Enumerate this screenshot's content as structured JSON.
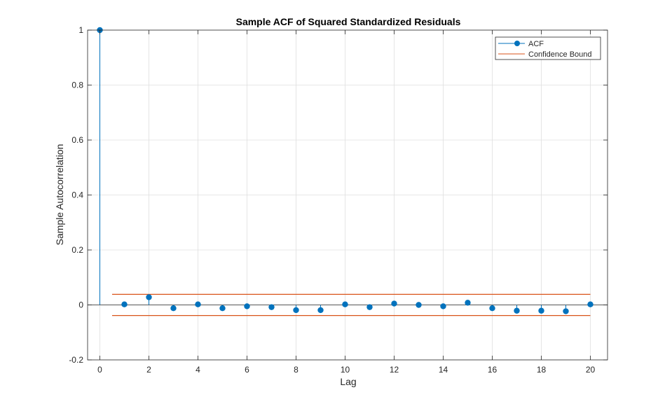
{
  "chart_data": {
    "type": "stem",
    "title": "Sample ACF of Squared Standardized Residuals",
    "xlabel": "Lag",
    "ylabel": "Sample Autocorrelation",
    "xlim": [
      -0.5,
      20.7
    ],
    "ylim": [
      -0.2,
      1
    ],
    "xticks": [
      0,
      2,
      4,
      6,
      8,
      10,
      12,
      14,
      16,
      18,
      20
    ],
    "yticks": [
      -0.2,
      0,
      0.2,
      0.4,
      0.6,
      0.8,
      1
    ],
    "ytick_labels": [
      "-0.2",
      "0",
      "0.2",
      "0.4",
      "0.6",
      "0.8",
      "1"
    ],
    "grid": true,
    "legend_position": "top-right",
    "series": [
      {
        "name": "ACF",
        "color": "#0072BD",
        "x": [
          0,
          1,
          2,
          3,
          4,
          5,
          6,
          7,
          8,
          9,
          10,
          11,
          12,
          13,
          14,
          15,
          16,
          17,
          18,
          19,
          20
        ],
        "values": [
          1,
          0.002,
          0.028,
          -0.012,
          0.002,
          -0.012,
          -0.005,
          -0.008,
          -0.019,
          -0.019,
          0.002,
          -0.008,
          0.005,
          0.0,
          -0.005,
          0.008,
          -0.012,
          -0.021,
          -0.021,
          -0.023,
          0.002
        ]
      },
      {
        "name": "Confidence Bound",
        "color": "#D95319",
        "x_range": [
          0.5,
          20
        ],
        "upper": 0.0385,
        "lower": -0.0385
      }
    ]
  }
}
